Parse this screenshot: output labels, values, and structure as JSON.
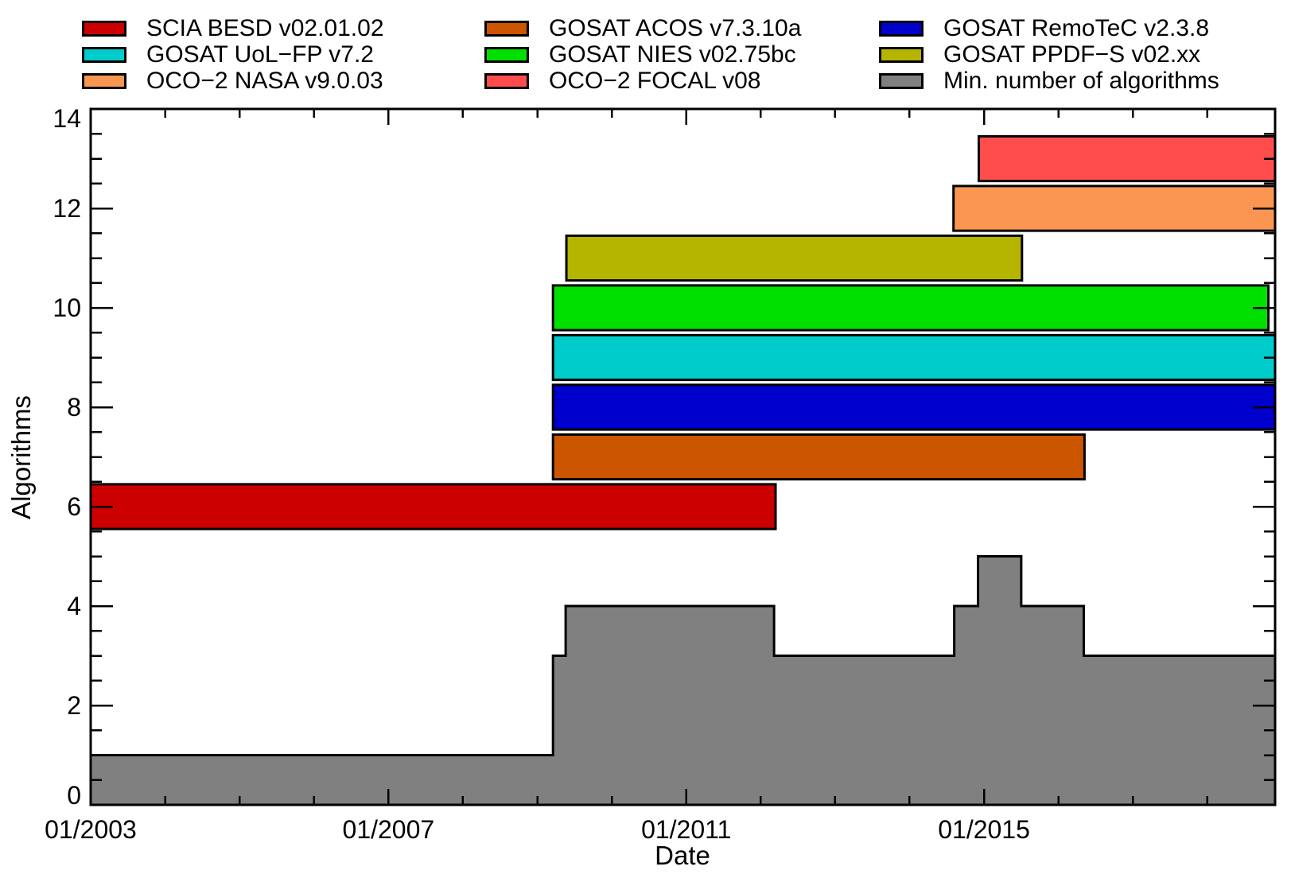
{
  "figure": {
    "background": "#ffffff"
  },
  "legend": {
    "items": [
      {
        "label": "SCIA BESD v02.01.02",
        "color": "#cc0000"
      },
      {
        "label": "GOSAT UoL−FP v7.2",
        "color": "#00cccc"
      },
      {
        "label": "OCO−2 NASA v9.0.03",
        "color": "#fa9651"
      },
      {
        "label": "GOSAT ACOS v7.3.10a",
        "color": "#cc5500"
      },
      {
        "label": "GOSAT NIES v02.75bc",
        "color": "#00e000"
      },
      {
        "label": "OCO−2 FOCAL v08",
        "color": "#ff4d4d"
      },
      {
        "label": "GOSAT RemoTeC v2.3.8",
        "color": "#0000cc"
      },
      {
        "label": "GOSAT PPDF−S v02.xx",
        "color": "#b5b500"
      },
      {
        "label": "Min. number of algorithms",
        "color": "#808080"
      }
    ]
  },
  "chart_data": {
    "type": "bar",
    "subtype": "horizontal-timeline-bars-with-step-area",
    "title": "",
    "xlabel": "Date",
    "ylabel": "Algorithms",
    "x_range_years": [
      2003.0,
      2018.91
    ],
    "x_major_ticks": [
      {
        "year": 2003.0,
        "label": "01/2003"
      },
      {
        "year": 2007.0,
        "label": "01/2007"
      },
      {
        "year": 2011.0,
        "label": "01/2011"
      },
      {
        "year": 2015.0,
        "label": "01/2015"
      }
    ],
    "x_minor_tick_every_years": 1,
    "ylim": [
      0,
      14
    ],
    "y_major_tick_step": 2,
    "y_minor_tick_step": 0.5,
    "y_tick_labels": [
      "0",
      "2",
      "4",
      "6",
      "8",
      "10",
      "12",
      "14"
    ],
    "grid": false,
    "legend_position": "top",
    "bar_half_height": 0.45,
    "bars": [
      {
        "name": "SCIA BESD v02.01.02",
        "color": "#cc0000",
        "level": 6,
        "start": 2003.0,
        "end": 2012.2,
        "clipped_right": false
      },
      {
        "name": "GOSAT ACOS v7.3.10a",
        "color": "#cc5500",
        "level": 7,
        "start": 2009.21,
        "end": 2016.35,
        "clipped_right": false
      },
      {
        "name": "GOSAT RemoTeC v2.3.8",
        "color": "#0000cc",
        "level": 8,
        "start": 2009.21,
        "end": 2018.91,
        "clipped_right": true
      },
      {
        "name": "GOSAT UoL−FP v7.2",
        "color": "#00cccc",
        "level": 9,
        "start": 2009.21,
        "end": 2018.91,
        "clipped_right": true
      },
      {
        "name": "GOSAT NIES v02.75bc",
        "color": "#00e000",
        "level": 10,
        "start": 2009.21,
        "end": 2018.82,
        "clipped_right": false
      },
      {
        "name": "GOSAT PPDF−S v02.xx",
        "color": "#b5b500",
        "level": 11,
        "start": 2009.39,
        "end": 2015.51,
        "clipped_right": false
      },
      {
        "name": "OCO−2 NASA v9.0.03",
        "color": "#fa9651",
        "level": 12,
        "start": 2014.59,
        "end": 2018.91,
        "clipped_right": true
      },
      {
        "name": "OCO−2 FOCAL v08",
        "color": "#ff4d4d",
        "level": 13,
        "start": 2014.93,
        "end": 2018.91,
        "clipped_right": true
      }
    ],
    "step_area": {
      "name": "Min. number of algorithms",
      "color": "#808080",
      "points": [
        {
          "year": 2003.0,
          "value": 1
        },
        {
          "year": 2009.21,
          "value": 3
        },
        {
          "year": 2009.38,
          "value": 4
        },
        {
          "year": 2012.18,
          "value": 3
        },
        {
          "year": 2014.6,
          "value": 4
        },
        {
          "year": 2014.92,
          "value": 5
        },
        {
          "year": 2015.5,
          "value": 4
        },
        {
          "year": 2016.34,
          "value": 3
        }
      ],
      "end_year": 2018.91
    }
  }
}
